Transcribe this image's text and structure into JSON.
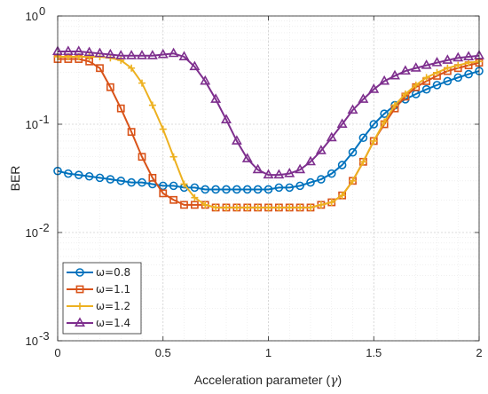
{
  "chart_data": {
    "type": "line",
    "xlabel": "Acceleration parameter (",
    "xlabel_symbol": "γ",
    "xlabel_close": ")",
    "ylabel": "BER",
    "x_scale": "linear",
    "y_scale": "log",
    "xlim": [
      0,
      2
    ],
    "ylim": [
      0.001,
      1
    ],
    "x_ticks": [
      0,
      0.5,
      1,
      1.5,
      2
    ],
    "x_tick_labels": [
      "0",
      "0.5",
      "1",
      "1.5",
      "2"
    ],
    "y_ticks": [
      0.001,
      0.01,
      0.1,
      1
    ],
    "y_tick_labels": [
      {
        "base": "10",
        "exp": "-3"
      },
      {
        "base": "10",
        "exp": "-2"
      },
      {
        "base": "10",
        "exp": "-1"
      },
      {
        "base": "10",
        "exp": "0"
      }
    ],
    "grid": true,
    "minor_grid": true,
    "legend_position": "bottom-left",
    "x": [
      0,
      0.05,
      0.1,
      0.15,
      0.2,
      0.25,
      0.3,
      0.35,
      0.4,
      0.45,
      0.5,
      0.55,
      0.6,
      0.65,
      0.7,
      0.75,
      0.8,
      0.85,
      0.9,
      0.95,
      1,
      1.05,
      1.1,
      1.15,
      1.2,
      1.25,
      1.3,
      1.35,
      1.4,
      1.45,
      1.5,
      1.55,
      1.6,
      1.65,
      1.7,
      1.75,
      1.8,
      1.85,
      1.9,
      1.95,
      2
    ],
    "series": [
      {
        "name": "ω=0.8",
        "color": "#0072BD",
        "marker": "circle",
        "values": [
          0.037,
          0.035,
          0.034,
          0.033,
          0.032,
          0.031,
          0.03,
          0.029,
          0.029,
          0.028,
          0.027,
          0.027,
          0.026,
          0.026,
          0.025,
          0.025,
          0.025,
          0.025,
          0.025,
          0.025,
          0.025,
          0.026,
          0.026,
          0.027,
          0.029,
          0.031,
          0.035,
          0.042,
          0.055,
          0.075,
          0.1,
          0.125,
          0.15,
          0.17,
          0.19,
          0.21,
          0.23,
          0.25,
          0.27,
          0.29,
          0.31
        ]
      },
      {
        "name": "ω=1.1",
        "color": "#D95319",
        "marker": "square",
        "values": [
          0.4,
          0.4,
          0.4,
          0.38,
          0.33,
          0.22,
          0.14,
          0.085,
          0.05,
          0.032,
          0.023,
          0.02,
          0.018,
          0.018,
          0.018,
          0.017,
          0.017,
          0.017,
          0.017,
          0.017,
          0.017,
          0.017,
          0.017,
          0.017,
          0.017,
          0.018,
          0.019,
          0.022,
          0.03,
          0.045,
          0.07,
          0.1,
          0.14,
          0.18,
          0.22,
          0.25,
          0.28,
          0.31,
          0.33,
          0.35,
          0.37
        ]
      },
      {
        "name": "ω=1.2",
        "color": "#EDB120",
        "marker": "plus",
        "values": [
          0.42,
          0.42,
          0.42,
          0.42,
          0.42,
          0.41,
          0.39,
          0.33,
          0.24,
          0.15,
          0.09,
          0.05,
          0.028,
          0.021,
          0.018,
          0.017,
          0.017,
          0.017,
          0.017,
          0.017,
          0.017,
          0.017,
          0.017,
          0.017,
          0.017,
          0.018,
          0.019,
          0.022,
          0.03,
          0.045,
          0.07,
          0.105,
          0.15,
          0.19,
          0.23,
          0.27,
          0.3,
          0.33,
          0.35,
          0.37,
          0.38
        ]
      },
      {
        "name": "ω=1.4",
        "color": "#7E2F8E",
        "marker": "triangle",
        "values": [
          0.47,
          0.47,
          0.47,
          0.46,
          0.45,
          0.44,
          0.43,
          0.43,
          0.43,
          0.43,
          0.44,
          0.45,
          0.42,
          0.34,
          0.25,
          0.17,
          0.11,
          0.07,
          0.048,
          0.038,
          0.034,
          0.034,
          0.035,
          0.038,
          0.045,
          0.057,
          0.075,
          0.1,
          0.135,
          0.17,
          0.21,
          0.25,
          0.28,
          0.31,
          0.33,
          0.35,
          0.37,
          0.39,
          0.41,
          0.42,
          0.43
        ]
      }
    ]
  }
}
